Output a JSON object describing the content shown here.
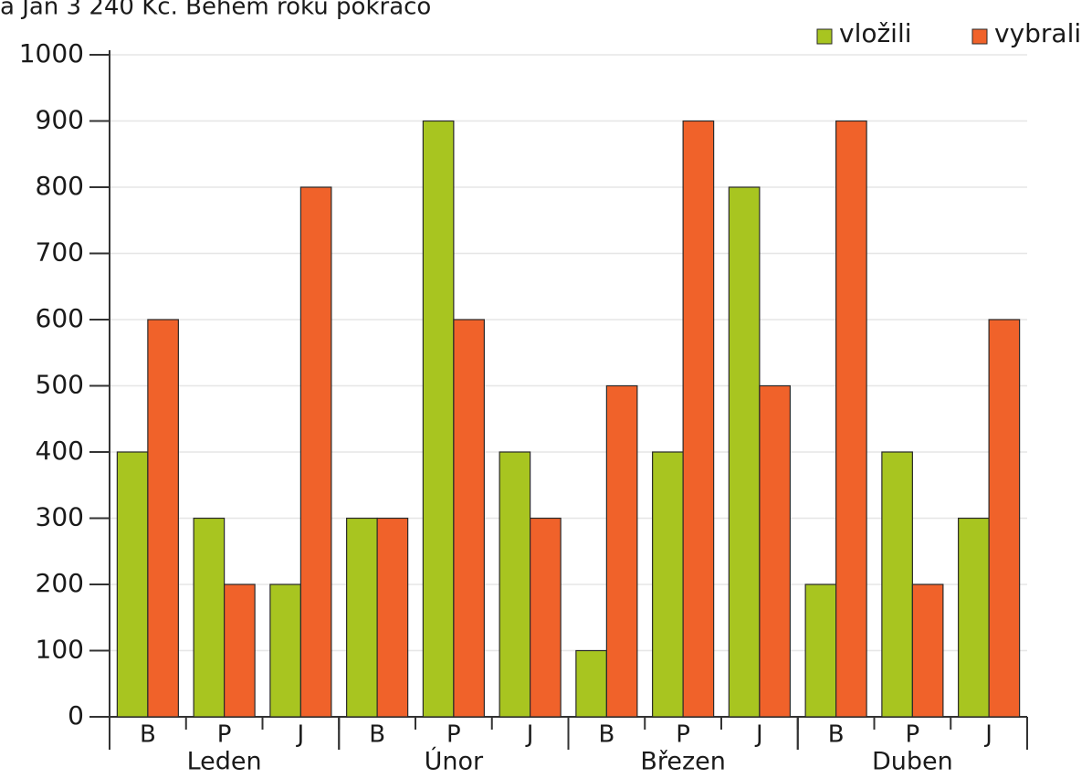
{
  "header_fragment": "a Jan 3 240 Kč. Během roku pokračo",
  "chart_data": {
    "type": "bar",
    "categories": [
      "B",
      "P",
      "J",
      "B",
      "P",
      "J",
      "B",
      "P",
      "J",
      "B",
      "P",
      "J"
    ],
    "groups": [
      {
        "name": "Leden",
        "size": 3
      },
      {
        "name": "Únor",
        "size": 3
      },
      {
        "name": "Březen",
        "size": 3
      },
      {
        "name": "Duben",
        "size": 3
      }
    ],
    "series": [
      {
        "name": "vložili",
        "color": "#a8c520",
        "values": [
          400,
          300,
          200,
          300,
          900,
          400,
          100,
          400,
          800,
          200,
          400,
          300
        ]
      },
      {
        "name": "vybrali",
        "color": "#f0622a",
        "values": [
          600,
          200,
          800,
          300,
          600,
          300,
          500,
          900,
          500,
          900,
          200,
          600
        ]
      }
    ],
    "ylim": [
      0,
      1000
    ],
    "yticks": [
      0,
      100,
      200,
      300,
      400,
      500,
      600,
      700,
      800,
      900,
      1000
    ],
    "grid": true,
    "legend": "top-right"
  }
}
